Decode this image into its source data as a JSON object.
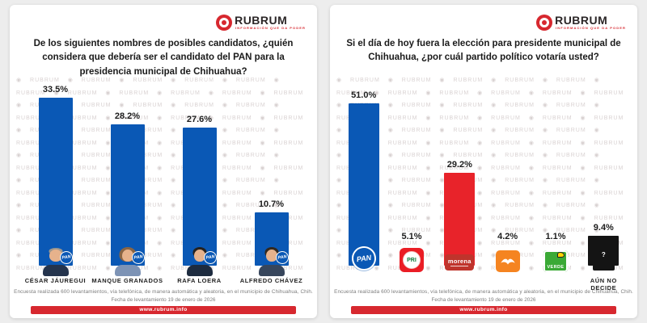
{
  "brand": {
    "name": "RUBRUM",
    "tagline": "INFORMACIÓN QUE DA PODER",
    "website": "www.rubrum.info",
    "watermark_glyph": "◉"
  },
  "footer": {
    "line1": "Encuesta realizada 600 levantamientos, vía telefónica, de manera automática y aleatoria, en el municipio de Chihuahua, Chih.",
    "line2": "Fecha de levantamiento 19 de enero de 2026"
  },
  "colors": {
    "background": "#ededed",
    "card": "#ffffff",
    "accent_red": "#d7282f",
    "text_dark": "#1a1a1a",
    "footer_gray": "#7d7d7d",
    "pan_blue": "#0a58b5",
    "pri_red": "#ea1d25",
    "morena_red": "#e8232a",
    "morena_logo_red": "#bf342c",
    "mc_orange": "#f58420",
    "verde_green": "#3aa935",
    "undecided_black": "#141414"
  },
  "chart_data": [
    {
      "type": "bar",
      "title": "De los siguientes nombres de posibles candidatos, ¿quién considera que debería ser el candidato del PAN para la presidencia municipal de Chihuahua?",
      "categories": [
        "CÉSAR JÁUREGUI",
        "MANQUE GRANADOS",
        "RAFA LOERA",
        "ALFREDO CHÁVEZ"
      ],
      "values": [
        33.5,
        28.2,
        27.6,
        10.7
      ],
      "value_labels": [
        "33.5%",
        "28.2%",
        "27.6%",
        "10.7%"
      ],
      "bar_colors": [
        "#0a58b5",
        "#0a58b5",
        "#0a58b5",
        "#0a58b5"
      ],
      "party_badge": "PAN",
      "ylim": [
        0,
        35
      ],
      "legend": "none",
      "grid": false
    },
    {
      "type": "bar",
      "title": "Si el día de hoy fuera la elección para presidente municipal de Chihuahua, ¿por cuál partido político votaría usted?",
      "categories": [
        "PAN",
        "PRI",
        "MORENA",
        "MOVIMIENTO CIUDADANO",
        "VERDE",
        "AÚN NO DECIDE"
      ],
      "values": [
        51.0,
        5.1,
        29.2,
        4.2,
        1.1,
        9.4
      ],
      "value_labels": [
        "51.0%",
        "5.1%",
        "29.2%",
        "4.2%",
        "1.1%",
        "9.4%"
      ],
      "bar_colors": [
        "#0a58b5",
        "#e8232a",
        "#e8232a",
        "#f58420",
        "#3aa935",
        "#141414"
      ],
      "logo_texts": {
        "pan": "PAN",
        "pri": "PRI",
        "morena": "morena",
        "verde": "VERDE",
        "undecided": "?"
      },
      "undecided_label": "AÚN NO DECIDE",
      "ylim": [
        0,
        55
      ],
      "legend": "none",
      "grid": false
    }
  ]
}
